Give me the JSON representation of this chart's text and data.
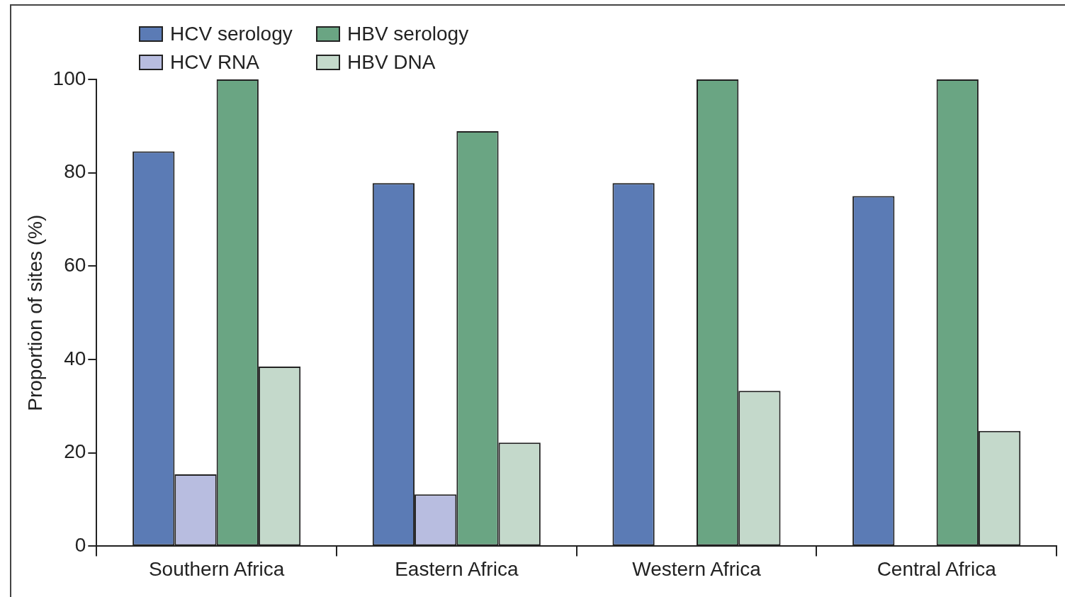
{
  "chart_data": {
    "type": "bar",
    "ylabel": "Proportion of sites (%)",
    "categories": [
      "Southern Africa",
      "Eastern Africa",
      "Western Africa",
      "Central Africa"
    ],
    "series": [
      {
        "name": "HCV serology",
        "color": "#5b7bb5",
        "values": [
          84.6,
          77.8,
          77.8,
          75
        ]
      },
      {
        "name": "HCV RNA",
        "color": "#b8bde0",
        "values": [
          15.4,
          11.1,
          0,
          0
        ]
      },
      {
        "name": "HBV serology",
        "color": "#6aa583",
        "values": [
          100,
          88.9,
          100,
          100
        ]
      },
      {
        "name": "HBV DNA",
        "color": "#c4d9cb",
        "values": [
          38.5,
          22.2,
          33.3,
          24.7
        ]
      }
    ],
    "ylim": [
      0,
      100
    ],
    "yticks": [
      0,
      20,
      40,
      60,
      80,
      100
    ],
    "grid": false,
    "legend": "top left"
  }
}
